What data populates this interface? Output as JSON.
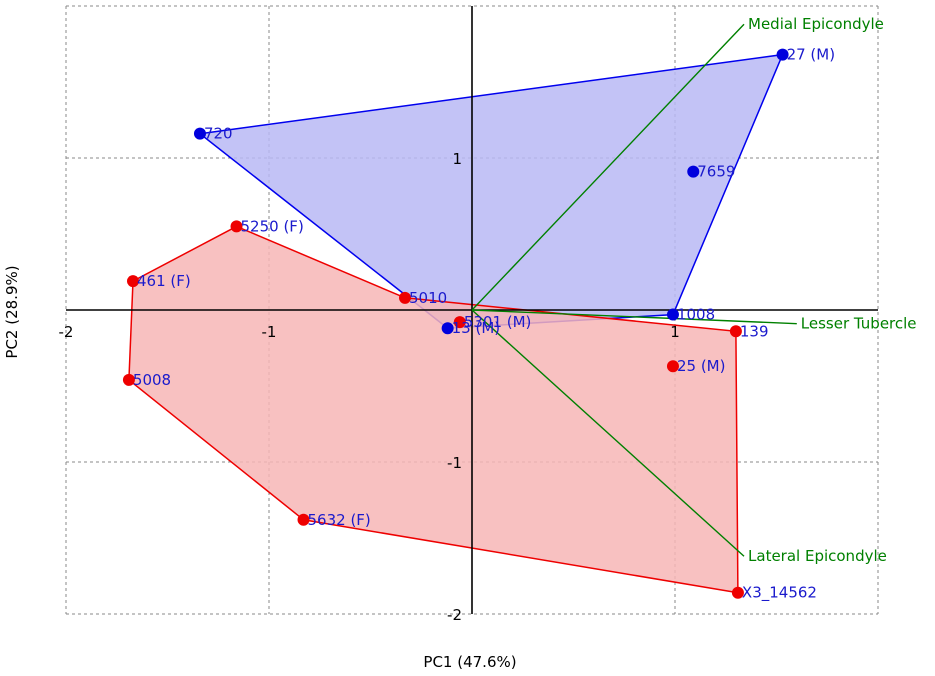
{
  "chart_data": {
    "type": "scatter",
    "title": "",
    "xlabel": "PC1 (47.6%)",
    "ylabel": "PC2 (28.9%)",
    "xlim": [
      -2,
      2
    ],
    "ylim": [
      -2,
      2
    ],
    "xticks": [
      -2,
      -1,
      1
    ],
    "yticks": [
      1,
      -1,
      -2
    ],
    "grid": true,
    "colors": {
      "blue_point": "#0000dd",
      "blue_hull_fill": "#b8b8f5",
      "blue_hull_stroke": "#0000ee",
      "red_point": "#ee0000",
      "red_hull_fill": "#f7b6b6",
      "red_hull_stroke": "#ee0000",
      "label_text": "#1a1acc",
      "loading": "#008000",
      "grid": "#888888"
    },
    "series": [
      {
        "group": "blue",
        "points": [
          {
            "label": "720",
            "x": -1.34,
            "y": 1.16
          },
          {
            "label": "27 (M)",
            "x": 1.53,
            "y": 1.68
          },
          {
            "label": "7659",
            "x": 1.09,
            "y": 0.91
          },
          {
            "label": "1008",
            "x": 0.99,
            "y": -0.03
          },
          {
            "label": "13 (M)",
            "x": -0.12,
            "y": -0.12
          }
        ],
        "hull": [
          "720",
          "27 (M)",
          "1008",
          "13 (M)"
        ]
      },
      {
        "group": "red",
        "points": [
          {
            "label": "5250 (F)",
            "x": -1.16,
            "y": 0.55
          },
          {
            "label": "461 (F)",
            "x": -1.67,
            "y": 0.19
          },
          {
            "label": "5008",
            "x": -1.69,
            "y": -0.46
          },
          {
            "label": "5632 (F)",
            "x": -0.83,
            "y": -1.38
          },
          {
            "label": "X3_14562",
            "x": 1.31,
            "y": -1.86
          },
          {
            "label": "139",
            "x": 1.3,
            "y": -0.14
          },
          {
            "label": "25 (M)",
            "x": 0.99,
            "y": -0.37
          },
          {
            "label": "5010",
            "x": -0.33,
            "y": 0.08
          },
          {
            "label": "5301 (M)",
            "x": -0.06,
            "y": -0.08
          }
        ],
        "hull": [
          "5250 (F)",
          "461 (F)",
          "5008",
          "5632 (F)",
          "X3_14562",
          "139",
          "5010"
        ]
      }
    ],
    "loadings": [
      {
        "label": "Medial Epicondyle",
        "x": 1.34,
        "y": 1.88
      },
      {
        "label": "Lesser Tubercle",
        "x": 1.6,
        "y": -0.09
      },
      {
        "label": "Lateral Epicondyle",
        "x": 1.34,
        "y": -1.62
      }
    ]
  }
}
